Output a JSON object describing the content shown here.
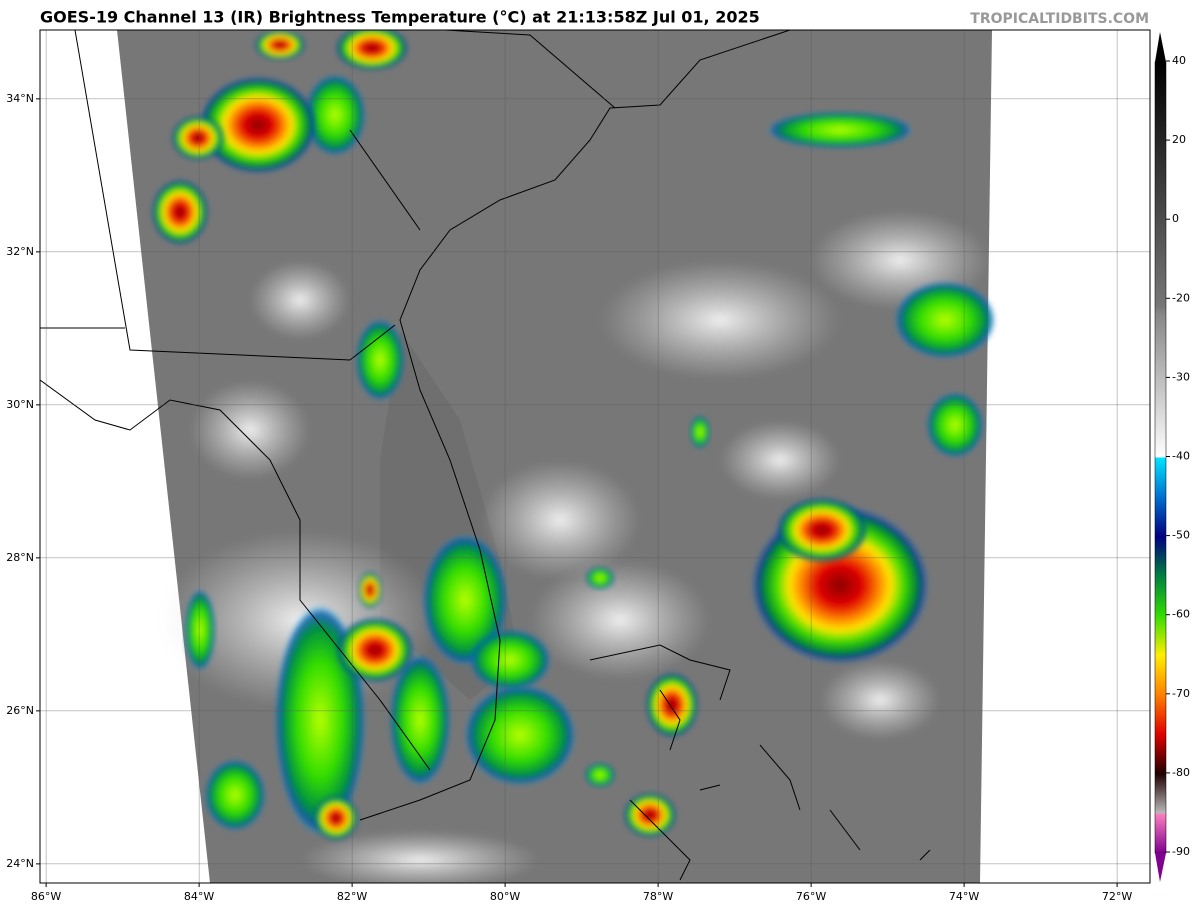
{
  "title": "GOES-19 Channel 13 (IR) Brightness Temperature (°C) at 21:13:58Z Jul 01, 2025",
  "watermark": "TROPICALTIDBITS.COM",
  "map": {
    "lonlim": [
      -86.08,
      -71.57
    ],
    "latlim": [
      23.75,
      34.9
    ],
    "lon_ticks": [
      {
        "value": -86,
        "label": "86°W"
      },
      {
        "value": -84,
        "label": "84°W"
      },
      {
        "value": -82,
        "label": "82°W"
      },
      {
        "value": -80,
        "label": "80°W"
      },
      {
        "value": -78,
        "label": "78°W"
      },
      {
        "value": -76,
        "label": "76°W"
      },
      {
        "value": -74,
        "label": "74°W"
      },
      {
        "value": -72,
        "label": "72°W"
      }
    ],
    "lat_ticks": [
      {
        "value": 24,
        "label": "24°N"
      },
      {
        "value": 26,
        "label": "26°N"
      },
      {
        "value": 28,
        "label": "28°N"
      },
      {
        "value": 30,
        "label": "30°N"
      },
      {
        "value": 32,
        "label": "32°N"
      },
      {
        "value": 34,
        "label": "34°N"
      }
    ]
  },
  "colorbar": {
    "ticks": [
      40,
      20,
      0,
      -20,
      -30,
      -40,
      -50,
      -60,
      -70,
      -80,
      -90
    ]
  }
}
